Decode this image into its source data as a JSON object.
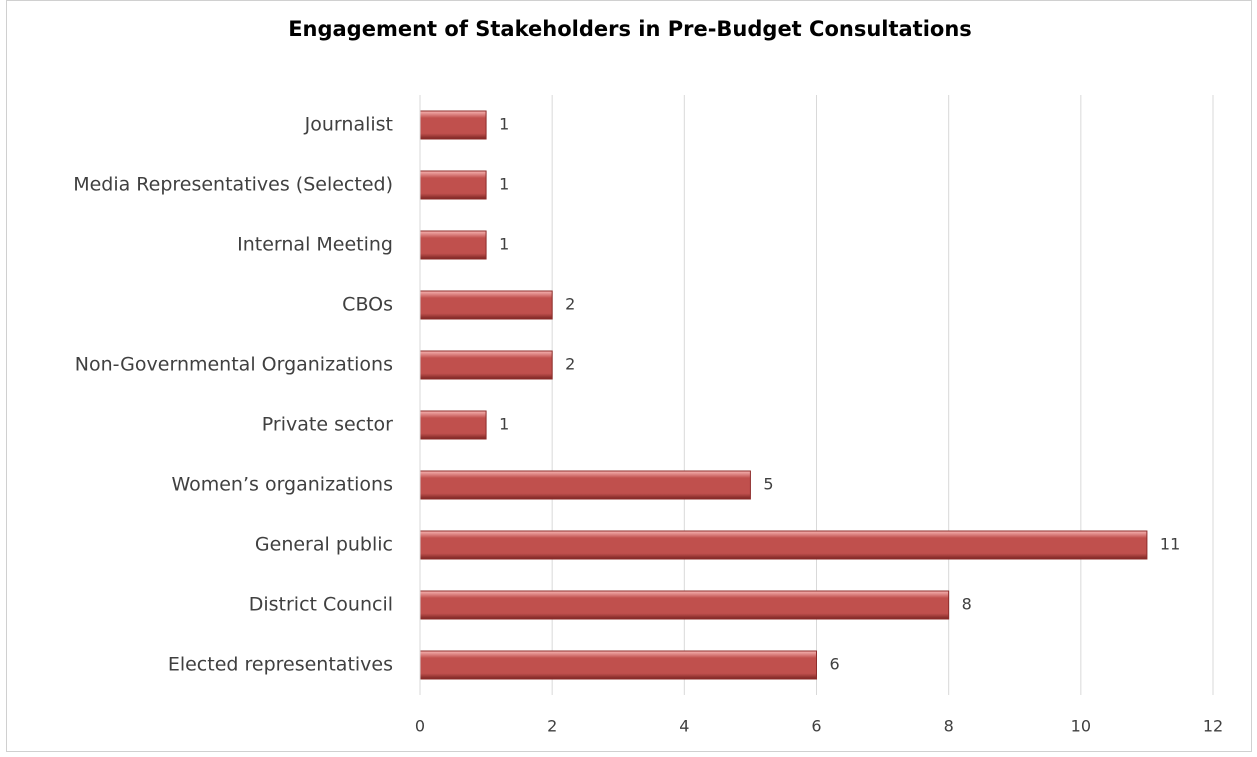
{
  "chart_data": {
    "type": "bar",
    "orientation": "horizontal",
    "title": "Engagement of Stakeholders in Pre-Budget Consultations",
    "categories": [
      "Elected representatives",
      "District Council",
      "General public",
      "Women’s organizations",
      "Private sector",
      "Non-Governmental Organizations",
      "CBOs",
      "Internal Meeting",
      "Media Representatives (Selected)",
      "Journalist"
    ],
    "values": [
      6,
      8,
      11,
      5,
      1,
      2,
      2,
      1,
      1,
      1
    ],
    "color": "#c0504d",
    "xlim": [
      0,
      12
    ],
    "xticks": [
      0,
      2,
      4,
      6,
      8,
      10,
      12
    ],
    "grid": true
  }
}
